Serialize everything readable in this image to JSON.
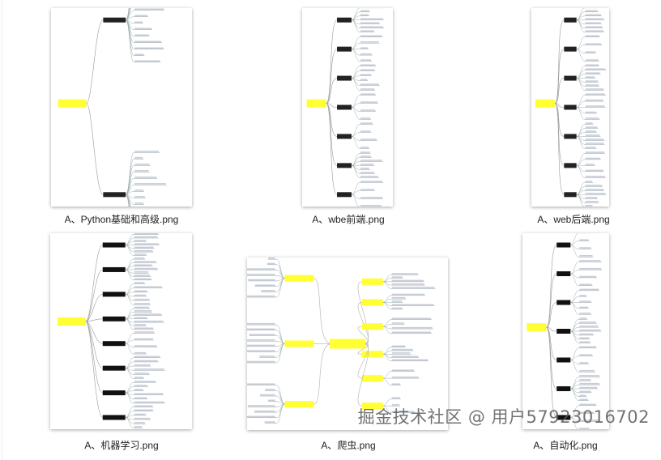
{
  "files": [
    {
      "name": "A、Python基础和高级.png",
      "layout": "left",
      "root_color": "#ffff33"
    },
    {
      "name": "A、wbe前端.png",
      "layout": "left",
      "root_color": "#ffff33"
    },
    {
      "name": "A、web后端.png",
      "layout": "left",
      "root_color": "#ffff33"
    },
    {
      "name": "A、机器学习.png",
      "layout": "left",
      "root_color": "#ffff33"
    },
    {
      "name": "A、爬虫.png",
      "layout": "center",
      "root_color": "#ffff33"
    },
    {
      "name": "A、自动化.png",
      "layout": "left",
      "root_color": "#ffff33"
    }
  ],
  "watermark": "掘金技术社区 @ 用户5792301​6702"
}
